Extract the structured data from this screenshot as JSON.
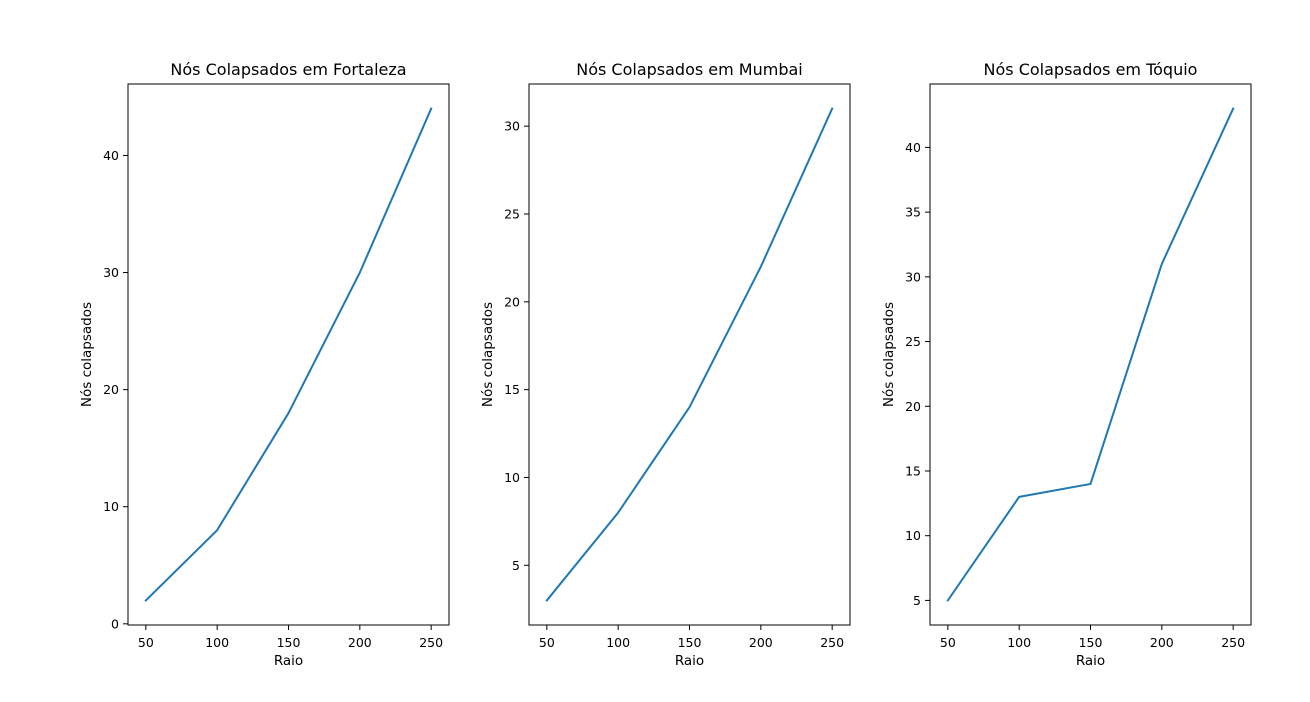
{
  "chart_data": [
    {
      "type": "line",
      "title": "Nós Colapsados em Fortaleza",
      "xlabel": "Raio",
      "ylabel": "Nós colapsados",
      "x": [
        50,
        100,
        150,
        200,
        250
      ],
      "series": [
        {
          "values": [
            2,
            8,
            18,
            30,
            44
          ]
        }
      ],
      "xlim": [
        37.5,
        262.5
      ],
      "ylim": [
        -0.1,
        46.1
      ],
      "xticks": [
        50,
        100,
        150,
        200,
        250
      ],
      "yticks": [
        0,
        10,
        20,
        30,
        40
      ],
      "grid": false,
      "color": "#1f77b4"
    },
    {
      "type": "line",
      "title": "Nós Colapsados em Mumbai",
      "xlabel": "Raio",
      "ylabel": "Nós colapsados",
      "x": [
        50,
        100,
        150,
        200,
        250
      ],
      "series": [
        {
          "values": [
            3,
            8,
            14,
            22,
            31
          ]
        }
      ],
      "xlim": [
        37.5,
        262.5
      ],
      "ylim": [
        1.6,
        32.4
      ],
      "xticks": [
        50,
        100,
        150,
        200,
        250
      ],
      "yticks": [
        5,
        10,
        15,
        20,
        25,
        30
      ],
      "grid": false,
      "color": "#1f77b4"
    },
    {
      "type": "line",
      "title": "Nós Colapsados em Tóquio",
      "xlabel": "Raio",
      "ylabel": "Nós colapsados",
      "x": [
        50,
        100,
        150,
        200,
        250
      ],
      "series": [
        {
          "values": [
            5,
            13,
            14,
            31,
            43
          ]
        }
      ],
      "xlim": [
        37.5,
        262.5
      ],
      "ylim": [
        3.1,
        44.9
      ],
      "xticks": [
        50,
        100,
        150,
        200,
        250
      ],
      "yticks": [
        5,
        10,
        15,
        20,
        25,
        30,
        35,
        40
      ],
      "grid": false,
      "color": "#1f77b4"
    }
  ]
}
